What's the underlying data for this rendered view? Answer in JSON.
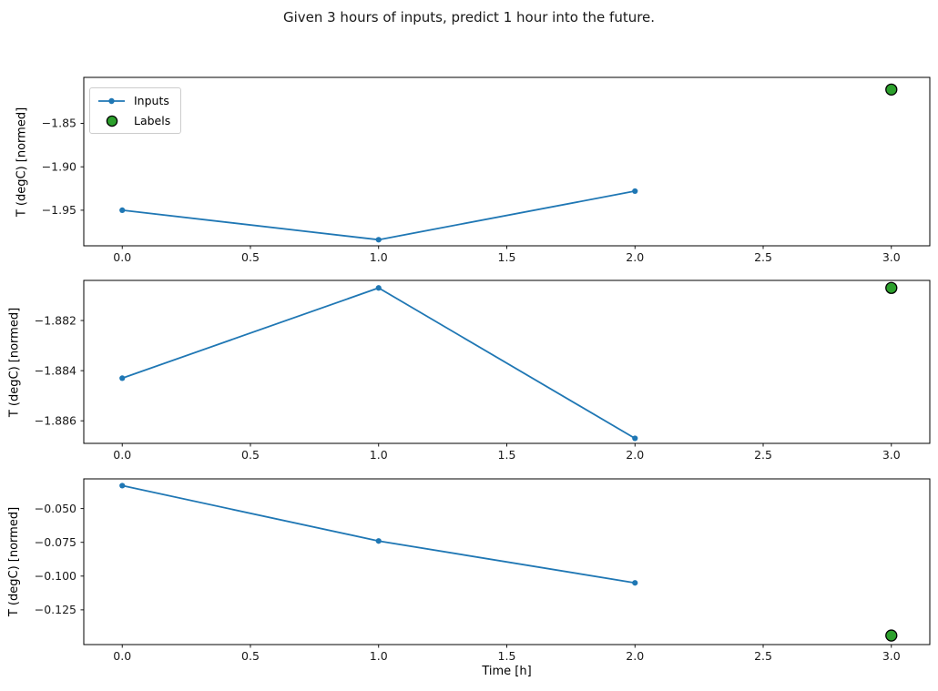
{
  "figure": {
    "title": "Given 3 hours of inputs, predict 1 hour into the future.",
    "colors": {
      "inputs": "#1f77b4",
      "labels": "#2ca02c",
      "label_edge": "#000000",
      "frame": "#000000"
    }
  },
  "legend": {
    "items": [
      {
        "label": "Inputs",
        "marker": "line-with-dot",
        "color": "#1f77b4"
      },
      {
        "label": "Labels",
        "marker": "filled-circle",
        "color": "#2ca02c"
      }
    ]
  },
  "chart_data": {
    "type": "line",
    "title": "Given 3 hours of inputs, predict 1 hour into the future.",
    "xlabel": "Time [h]",
    "ylabel": "T (degC) [normed]",
    "legend_position": "upper left of first subplot only",
    "grid": false,
    "xlim": [
      -0.15,
      3.15
    ],
    "xticks": [
      0.0,
      0.5,
      1.0,
      1.5,
      2.0,
      2.5,
      3.0
    ],
    "xtick_labels": [
      "0.0",
      "0.5",
      "1.0",
      "1.5",
      "2.0",
      "2.5",
      "3.0"
    ],
    "subplots": [
      {
        "ylabel": "T (degC) [normed]",
        "series": [
          {
            "name": "Inputs",
            "type": "line+marker",
            "x": [
              0.0,
              1.0,
              2.0
            ],
            "y": [
              -1.95,
              -1.984,
              -1.928
            ]
          },
          {
            "name": "Labels",
            "type": "scatter",
            "x": [
              3.0
            ],
            "y": [
              -1.811
            ]
          }
        ],
        "yticks": [
          -1.85,
          -1.9,
          -1.95
        ],
        "ytick_labels": [
          "−1.85",
          "−1.90",
          "−1.95"
        ],
        "ylim": [
          -1.991,
          -1.797
        ],
        "has_legend": true
      },
      {
        "ylabel": "T (degC) [normed]",
        "series": [
          {
            "name": "Inputs",
            "type": "line+marker",
            "x": [
              0.0,
              1.0,
              2.0
            ],
            "y": [
              -1.8843,
              -1.8807,
              -1.8867
            ]
          },
          {
            "name": "Labels",
            "type": "scatter",
            "x": [
              3.0
            ],
            "y": [
              -1.8807
            ]
          }
        ],
        "yticks": [
          -1.882,
          -1.884,
          -1.886
        ],
        "ytick_labels": [
          "−1.882",
          "−1.884",
          "−1.886"
        ],
        "ylim": [
          -1.8869,
          -1.8804
        ],
        "has_legend": false
      },
      {
        "ylabel": "T (degC) [normed]",
        "series": [
          {
            "name": "Inputs",
            "type": "line+marker",
            "x": [
              0.0,
              1.0,
              2.0
            ],
            "y": [
              -0.033,
              -0.074,
              -0.105
            ]
          },
          {
            "name": "Labels",
            "type": "scatter",
            "x": [
              3.0
            ],
            "y": [
              -0.144
            ]
          }
        ],
        "yticks": [
          -0.05,
          -0.075,
          -0.1,
          -0.125
        ],
        "ytick_labels": [
          "−0.050",
          "−0.075",
          "−0.100",
          "−0.125"
        ],
        "ylim": [
          -0.1507,
          -0.028
        ],
        "has_legend": false
      }
    ]
  }
}
